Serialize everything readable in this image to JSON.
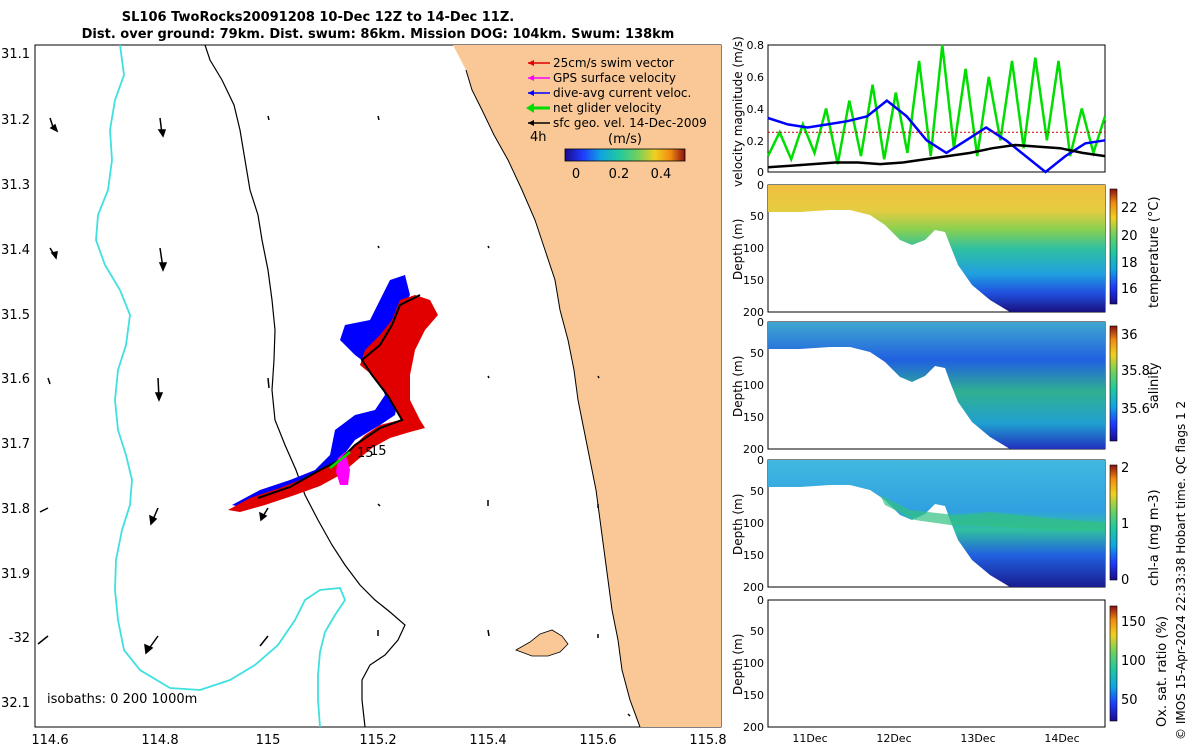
{
  "title": {
    "line1": "SL106 TwoRocks20091208 10-Dec 12Z to 14-Dec 11Z.",
    "line2": "Dist. over ground: 79km. Dist. swum: 86km. Mission DOG: 104km. Swum: 138km"
  },
  "map": {
    "lon_ticks": [
      "114.6",
      "114.8",
      "115",
      "115.2",
      "115.4",
      "115.6",
      "115.8"
    ],
    "lat_ticks": [
      "31.1",
      "31.2",
      "31.3",
      "31.4",
      "31.5",
      "31.6",
      "31.7",
      "31.8",
      "31.9",
      "-32",
      "32.1"
    ],
    "legend": [
      {
        "label": "25cm/s swim vector",
        "color": "#e00000"
      },
      {
        "label": "GPS surface velocity",
        "color": "#ff00ff"
      },
      {
        "label": "dive-avg current veloc.",
        "color": "#0000ff"
      },
      {
        "label": "net glider velocity",
        "color": "#00dd00"
      },
      {
        "label": "sfc geo. vel. 14-Dec-2009",
        "color": "#000000"
      }
    ],
    "time_label": "4h",
    "colorbar_unit": "(m/s)",
    "colorbar_ticks": [
      "0",
      "0.2",
      "0.4"
    ],
    "isobath_note": "isobaths: 0   200  1000m",
    "track_label_a": "15",
    "track_label_b": "15",
    "land_color": "#f9c896",
    "isobath_200_color": "#000000",
    "isobath_1000_color": "#40e0e0"
  },
  "chart_data": [
    {
      "type": "line",
      "ylabel": "velocity magnitude (m/s)",
      "ylim": [
        0,
        0.8
      ],
      "y_ticks": [
        "0",
        "0.2",
        "0.4",
        "0.6",
        "0.8"
      ],
      "x_range_days": [
        "10-Dec 12Z",
        "14-Dec 11Z"
      ],
      "series": [
        {
          "color": "#00dd00",
          "values": [
            0.1,
            0.25,
            0.08,
            0.3,
            0.12,
            0.4,
            0.05,
            0.45,
            0.1,
            0.55,
            0.08,
            0.5,
            0.12,
            0.7,
            0.1,
            0.8,
            0.15,
            0.65,
            0.1,
            0.6,
            0.2,
            0.7,
            0.15,
            0.72,
            0.2,
            0.7,
            0.1,
            0.4,
            0.12,
            0.35
          ]
        },
        {
          "color": "#0000ff",
          "values": [
            0.34,
            0.3,
            0.28,
            0.3,
            0.32,
            0.35,
            0.45,
            0.35,
            0.2,
            0.12,
            0.2,
            0.28,
            0.2,
            0.1,
            0.0,
            0.1,
            0.18,
            0.2
          ]
        },
        {
          "color": "#000000",
          "values": [
            0.03,
            0.04,
            0.05,
            0.06,
            0.06,
            0.05,
            0.06,
            0.08,
            0.1,
            0.12,
            0.15,
            0.17,
            0.16,
            0.15,
            0.12,
            0.1
          ]
        },
        {
          "color": "#cc0000",
          "values": [
            0.25,
            0.25,
            0.25,
            0.25,
            0.25,
            0.25,
            0.25,
            0.25
          ]
        }
      ]
    },
    {
      "type": "heatmap",
      "ylabel": "Depth (m)",
      "y_ticks": [
        "0",
        "50",
        "100",
        "150",
        "200"
      ],
      "colorbar_label": "temperature (°C)",
      "colorbar_ticks": [
        "22",
        "20",
        "18",
        "16"
      ]
    },
    {
      "type": "heatmap",
      "ylabel": "Depth (m)",
      "y_ticks": [
        "0",
        "50",
        "100",
        "150",
        "200"
      ],
      "colorbar_label": "salinity",
      "colorbar_ticks": [
        "36",
        "35.8",
        "35.6"
      ]
    },
    {
      "type": "heatmap",
      "ylabel": "Depth (m)",
      "y_ticks": [
        "0",
        "50",
        "100",
        "150",
        "200"
      ],
      "colorbar_label": "chl-a (mg m-3)",
      "colorbar_ticks": [
        "2",
        "1",
        "0"
      ]
    },
    {
      "type": "heatmap",
      "ylabel": "Depth (m)",
      "y_ticks": [
        "0",
        "50",
        "100",
        "150",
        "200"
      ],
      "colorbar_label": "Ox. sat. ratio (%)",
      "colorbar_ticks": [
        "150",
        "100",
        "50"
      ],
      "x_ticks": [
        "11Dec",
        "12Dec",
        "13Dec",
        "14Dec"
      ]
    }
  ],
  "side_note": "© IMOS 15-Apr-2024 22:33:38 Hobart time. QC flags 1  2"
}
